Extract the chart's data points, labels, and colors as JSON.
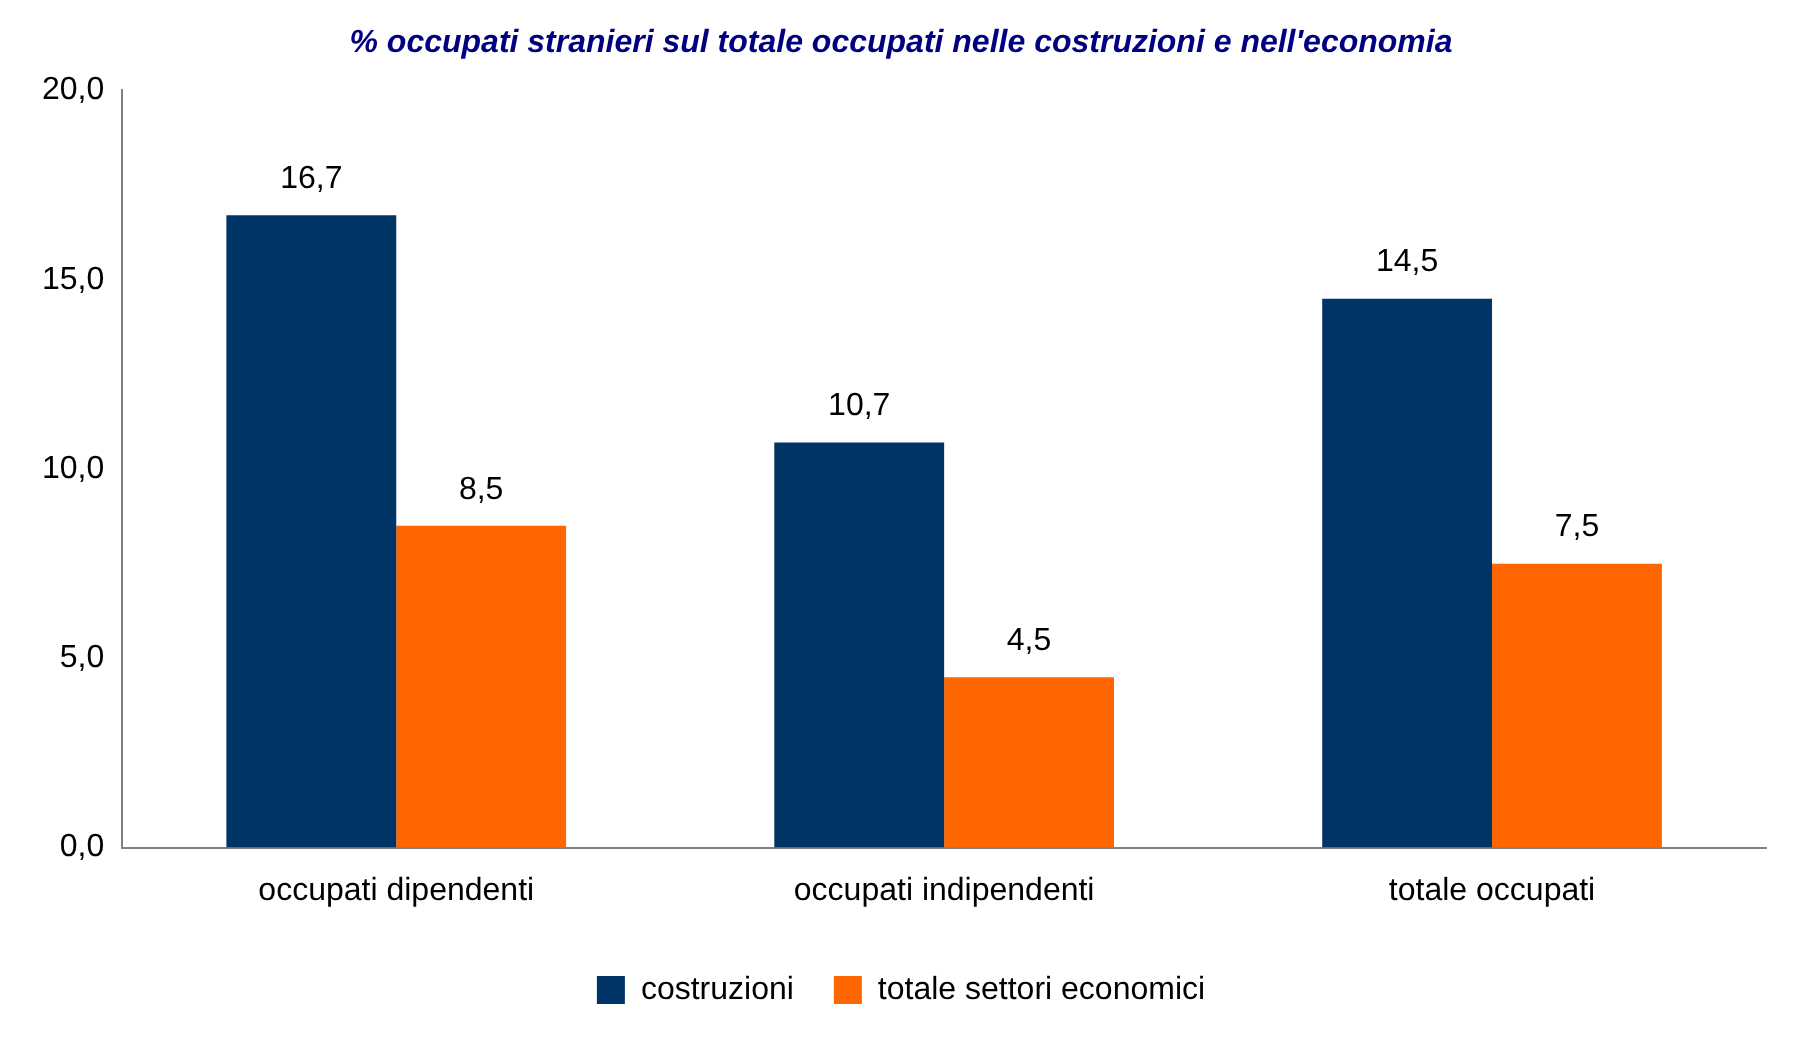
{
  "chart_data": {
    "type": "bar",
    "title": "% occupati stranieri sul totale occupati nelle costruzioni e nell'economia",
    "categories": [
      "occupati dipendenti",
      "occupati indipendenti",
      "totale occupati"
    ],
    "series": [
      {
        "name": "costruzioni",
        "color": "#003366",
        "values": [
          16.7,
          10.7,
          14.5
        ],
        "value_labels": [
          "16,7",
          "10,7",
          "14,5"
        ]
      },
      {
        "name": "totale settori economici",
        "color": "#ff6600",
        "values": [
          8.5,
          4.5,
          7.5
        ],
        "value_labels": [
          "8,5",
          "4,5",
          "7,5"
        ]
      }
    ],
    "ylim": [
      0,
      20
    ],
    "yticks": [
      {
        "value": 0,
        "label": "0,0"
      },
      {
        "value": 5,
        "label": "5,0"
      },
      {
        "value": 10,
        "label": "10,0"
      },
      {
        "value": 15,
        "label": "15,0"
      },
      {
        "value": 20,
        "label": "20,0"
      }
    ],
    "grid": false,
    "legend": "bottom"
  }
}
